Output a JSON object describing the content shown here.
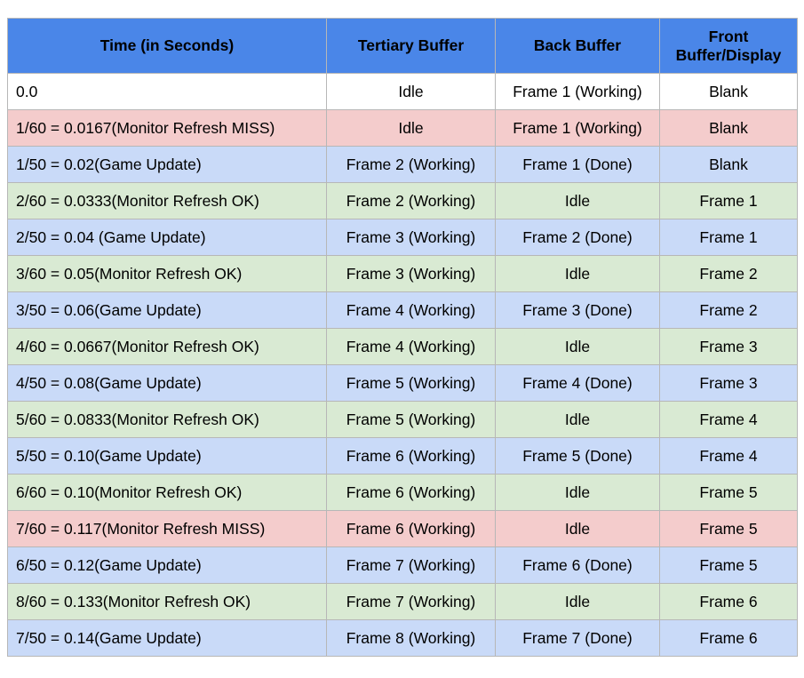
{
  "headers": [
    "Time (in Seconds)",
    "Tertiary Buffer",
    "Back Buffer",
    "Front Buffer/Display"
  ],
  "rows": [
    {
      "kind": "white",
      "cells": [
        "0.0",
        "Idle",
        "Frame 1 (Working)",
        "Blank"
      ]
    },
    {
      "kind": "red",
      "cells": [
        "1/60 = 0.0167(Monitor Refresh MISS)",
        "Idle",
        "Frame 1 (Working)",
        "Blank"
      ]
    },
    {
      "kind": "blue",
      "cells": [
        "1/50 = 0.02(Game Update)",
        "Frame 2 (Working)",
        "Frame 1 (Done)",
        "Blank"
      ]
    },
    {
      "kind": "green",
      "cells": [
        "2/60 = 0.0333(Monitor Refresh OK)",
        "Frame 2 (Working)",
        "Idle",
        "Frame 1"
      ]
    },
    {
      "kind": "blue",
      "cells": [
        "2/50 = 0.04 (Game Update)",
        "Frame 3 (Working)",
        "Frame 2 (Done)",
        "Frame 1"
      ]
    },
    {
      "kind": "green",
      "cells": [
        "3/60 = 0.05(Monitor Refresh OK)",
        "Frame 3 (Working)",
        "Idle",
        "Frame 2"
      ]
    },
    {
      "kind": "blue",
      "cells": [
        "3/50 = 0.06(Game Update)",
        "Frame 4 (Working)",
        "Frame 3 (Done)",
        "Frame 2"
      ]
    },
    {
      "kind": "green",
      "cells": [
        "4/60 = 0.0667(Monitor Refresh OK)",
        "Frame 4 (Working)",
        "Idle",
        "Frame 3"
      ]
    },
    {
      "kind": "blue",
      "cells": [
        "4/50 = 0.08(Game Update)",
        "Frame 5 (Working)",
        "Frame 4 (Done)",
        "Frame 3"
      ]
    },
    {
      "kind": "green",
      "cells": [
        "5/60 = 0.0833(Monitor Refresh OK)",
        "Frame 5 (Working)",
        "Idle",
        "Frame 4"
      ]
    },
    {
      "kind": "blue",
      "cells": [
        "5/50 = 0.10(Game Update)",
        "Frame 6 (Working)",
        "Frame 5 (Done)",
        "Frame 4"
      ]
    },
    {
      "kind": "green",
      "cells": [
        "6/60 = 0.10(Monitor Refresh OK)",
        "Frame 6 (Working)",
        "Idle",
        "Frame 5"
      ]
    },
    {
      "kind": "red",
      "cells": [
        "7/60 = 0.117(Monitor Refresh MISS)",
        "Frame 6 (Working)",
        "Idle",
        "Frame 5"
      ]
    },
    {
      "kind": "blue",
      "cells": [
        "6/50 = 0.12(Game Update)",
        "Frame 7 (Working)",
        "Frame 6 (Done)",
        "Frame 5"
      ]
    },
    {
      "kind": "green",
      "cells": [
        "8/60 = 0.133(Monitor Refresh OK)",
        "Frame 7 (Working)",
        "Idle",
        "Frame 6"
      ]
    },
    {
      "kind": "blue",
      "cells": [
        "7/50 = 0.14(Game Update)",
        "Frame 8 (Working)",
        "Frame 7 (Done)",
        "Frame 6"
      ]
    }
  ],
  "colors": {
    "header": "#4a86e8",
    "white": "#ffffff",
    "miss": "#f4cccc",
    "game_update": "#c9daf8",
    "refresh_ok": "#d9ead3",
    "border": "#b7b7b7"
  }
}
